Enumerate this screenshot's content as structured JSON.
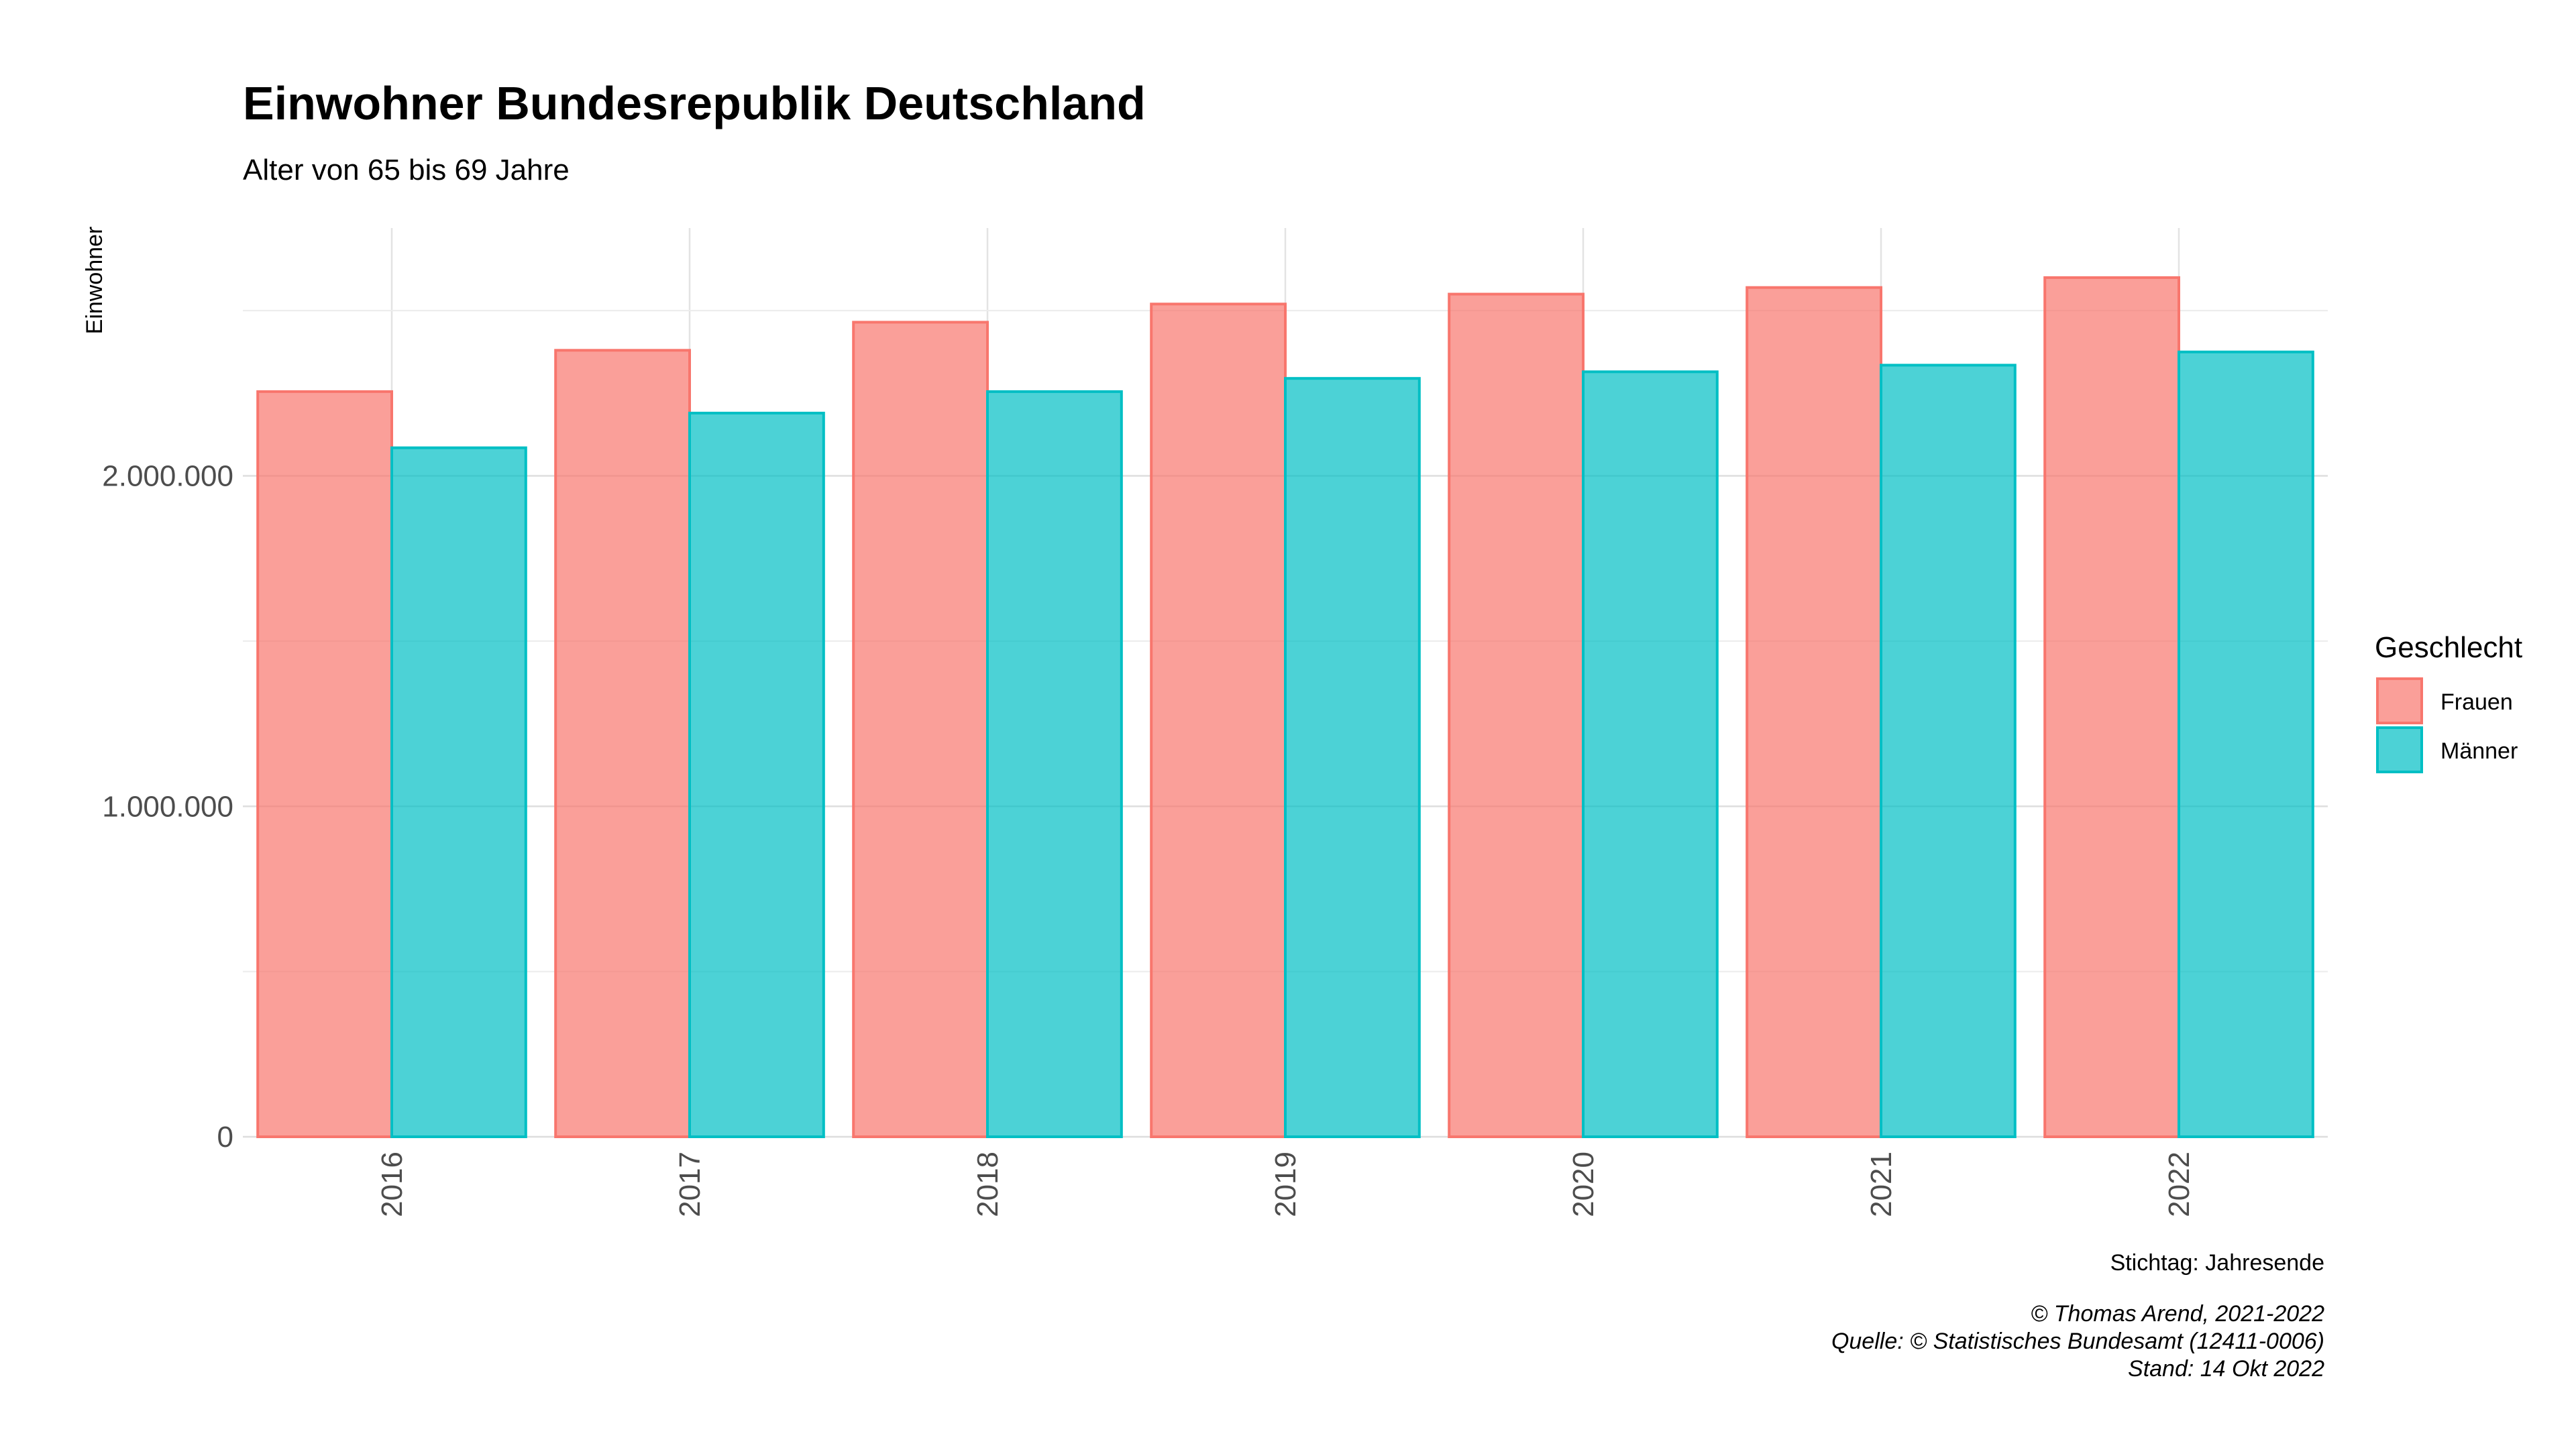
{
  "chart_data": {
    "type": "bar",
    "title": "Einwohner Bundesrepublik Deutschland",
    "subtitle": "Alter von 65 bis 69 Jahre",
    "ylabel": "Einwohner",
    "xlabel": "",
    "categories": [
      "2016",
      "2017",
      "2018",
      "2019",
      "2020",
      "2021",
      "2022"
    ],
    "series": [
      {
        "name": "Frauen",
        "color": "#F8766D",
        "values": [
          2255000,
          2380000,
          2465000,
          2520000,
          2550000,
          2570000,
          2600000
        ]
      },
      {
        "name": "Männer",
        "color": "#00BFC4",
        "values": [
          2085000,
          2190000,
          2255000,
          2295000,
          2315000,
          2335000,
          2375000
        ]
      }
    ],
    "ylim": [
      0,
      2750000
    ],
    "yticks": [
      0,
      1000000,
      2000000
    ],
    "ytick_labels": [
      "0",
      "1.000.000",
      "2.000.000"
    ],
    "grid": true,
    "legend": {
      "title": "Geschlecht",
      "placement": "right"
    },
    "x_tick_rotation": "vertical"
  },
  "captions": {
    "note": "Stichtag: Jahresende",
    "copyright": "© Thomas Arend, 2021-2022",
    "source": "Quelle: © Statistisches Bundesamt (12411-0006)",
    "date": "Stand: 14 Okt 2022"
  }
}
